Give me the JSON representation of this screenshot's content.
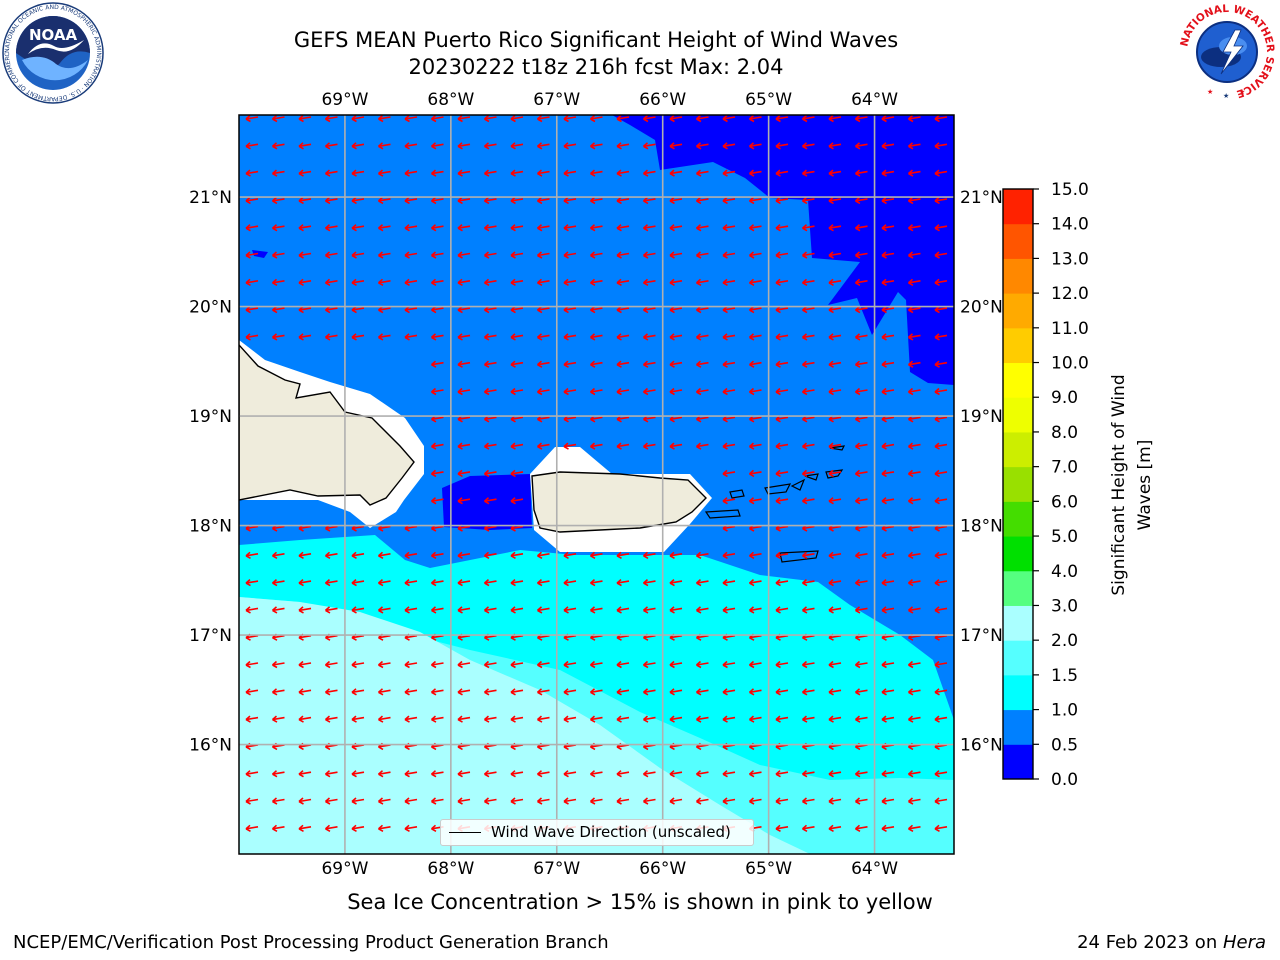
{
  "header": {
    "title_line1": "GEFS MEAN Puerto Rico Significant Height of Wind Waves",
    "title_line2": "20230222 t18z 216h fcst   Max: 2.04"
  },
  "logos": {
    "noaa_text": "NOAA",
    "noaa_ring_text": "NATIONAL OCEANIC AND ATMOSPHERIC ADMINISTRATION · U.S. DEPARTMENT OF COMMERCE",
    "nws_ring_text": "NATIONAL WEATHER SERVICE"
  },
  "map": {
    "lon_ticks": [
      "69°W",
      "68°W",
      "67°W",
      "66°W",
      "65°W",
      "64°W"
    ],
    "lat_ticks": [
      "21°N",
      "20°N",
      "19°N",
      "18°N",
      "17°N",
      "16°N"
    ],
    "lon_values": [
      -69,
      -68,
      -67,
      -66,
      -65,
      -64
    ],
    "lat_values": [
      21,
      20,
      19,
      18,
      17,
      16
    ],
    "lon_range": [
      -70.0,
      -63.25
    ],
    "lat_range": [
      15.0,
      21.75
    ],
    "wind_wave_direction": "from east-northeast, toward west-southwest",
    "legend_label": "Wind Wave Direction (unscaled)",
    "colors": {
      "band_0_0.5": "#0000ff",
      "band_0.5_1": "#0080ff",
      "band_1_1.5": "#00ffff",
      "band_1.5_2": "#55ffff",
      "band_2_3": "#aaffff",
      "land": "#efecdc",
      "arrow": "#ff0000"
    }
  },
  "colorbar": {
    "label": "Significant Height of Wind Waves [m]",
    "label_line1": "Significant Height of Wind",
    "label_line2": "Waves [m]",
    "ticks": [
      "15.0",
      "14.0",
      "13.0",
      "12.0",
      "11.0",
      "10.0",
      "9.0",
      "8.0",
      "7.0",
      "6.0",
      "5.0",
      "4.0",
      "3.0",
      "2.0",
      "1.5",
      "1.0",
      "0.5",
      "0.0"
    ],
    "colors_bottom_to_top": [
      "#0000ff",
      "#0080ff",
      "#00ffff",
      "#55ffff",
      "#aaffff",
      "#55ff80",
      "#00e000",
      "#44dd00",
      "#99e000",
      "#ccee00",
      "#eeff00",
      "#ffff00",
      "#ffcc00",
      "#ffaa00",
      "#ff8800",
      "#ff5500",
      "#ff2200"
    ]
  },
  "notes": {
    "ice": "Sea Ice Concentration > 15% is shown in pink to yellow"
  },
  "footer": {
    "left": "NCEP/EMC/Verification Post Processing Product Generation Branch",
    "right_prefix": "24 Feb 2023 on ",
    "right_machine": "Hera"
  }
}
